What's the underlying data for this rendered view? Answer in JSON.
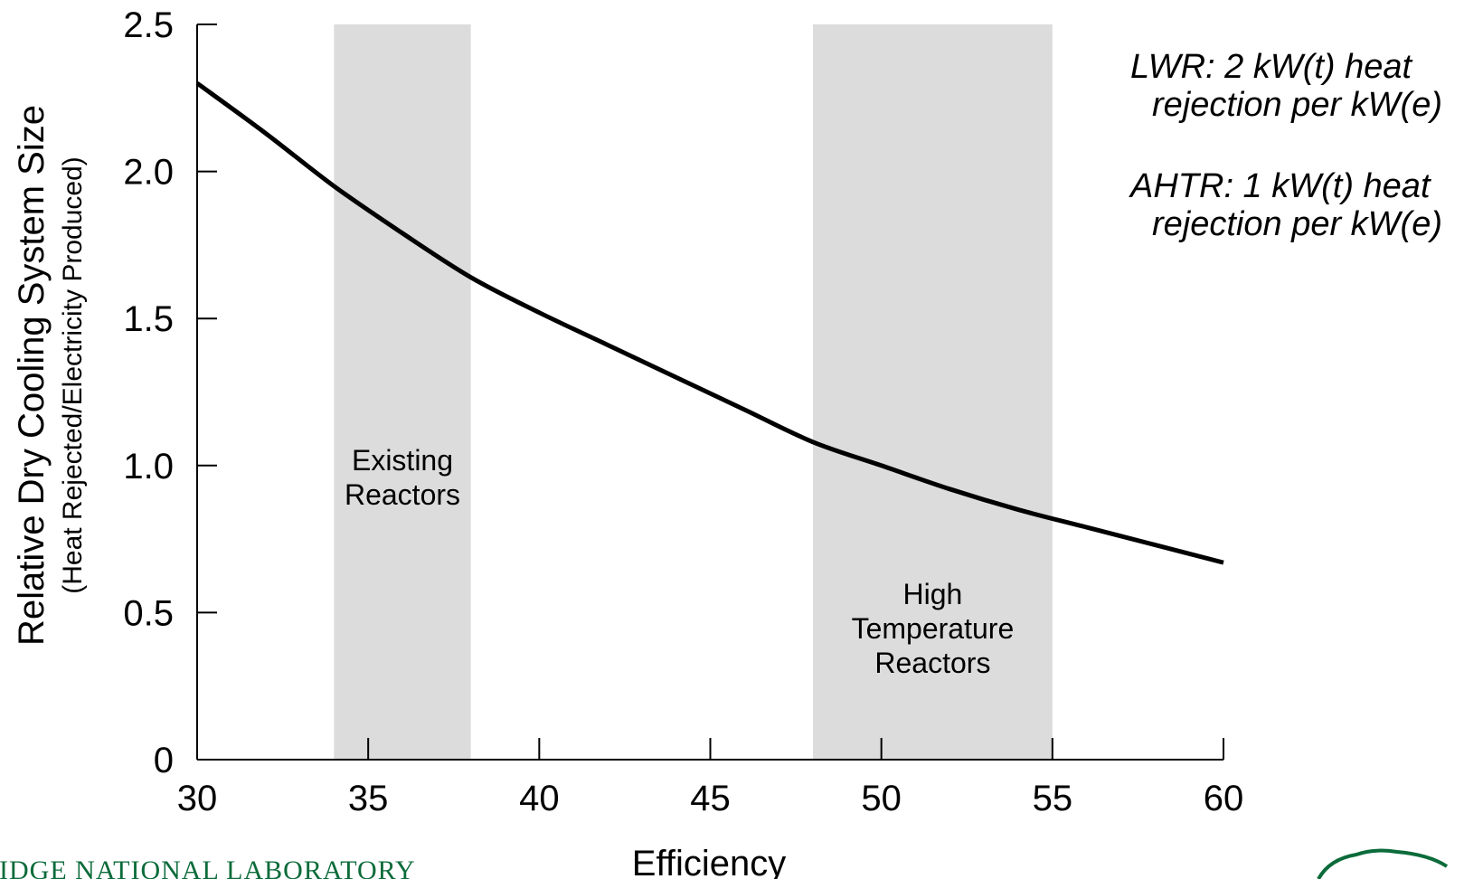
{
  "chart_data": {
    "type": "line",
    "title": "",
    "xlabel": "Efficiency",
    "ylabel": "Relative Dry Cooling System Size",
    "ylabel_sub": "(Heat Rejected/Electricity Produced)",
    "xlim": [
      30,
      60
    ],
    "ylim": [
      0,
      2.5
    ],
    "x_ticks": [
      "30",
      "35",
      "40",
      "45",
      "50",
      "55",
      "60"
    ],
    "y_ticks": [
      "0",
      "0.5",
      "1.0",
      "1.5",
      "2.0",
      "2.5"
    ],
    "grid": false,
    "series": [
      {
        "x": [
          30,
          32,
          34,
          36,
          38,
          40,
          42,
          44,
          46,
          48,
          50,
          52,
          54,
          56,
          58,
          60
        ],
        "values": [
          2.3,
          2.13,
          1.95,
          1.79,
          1.64,
          1.52,
          1.41,
          1.3,
          1.19,
          1.08,
          1.0,
          0.92,
          0.85,
          0.79,
          0.73,
          0.67
        ]
      }
    ],
    "shaded_regions": [
      {
        "x_range": [
          34,
          38
        ],
        "label_lines": [
          "Existing",
          "Reactors"
        ]
      },
      {
        "x_range": [
          48,
          55
        ],
        "label_lines": [
          "High",
          "Temperature",
          "Reactors"
        ]
      }
    ],
    "annotations": [
      {
        "lines": [
          "LWR: 2 kW(t) heat",
          "rejection per kW(e)"
        ]
      },
      {
        "lines": [
          "AHTR: 1 kW(t) heat",
          "rejection per kW(e)"
        ]
      }
    ]
  },
  "footer": {
    "lab_name": "RIDGE NATIONAL LABORATORY"
  },
  "colors": {
    "shade": "#dcdcdc",
    "line": "#000000",
    "footer_text": "#0b6b3a"
  }
}
